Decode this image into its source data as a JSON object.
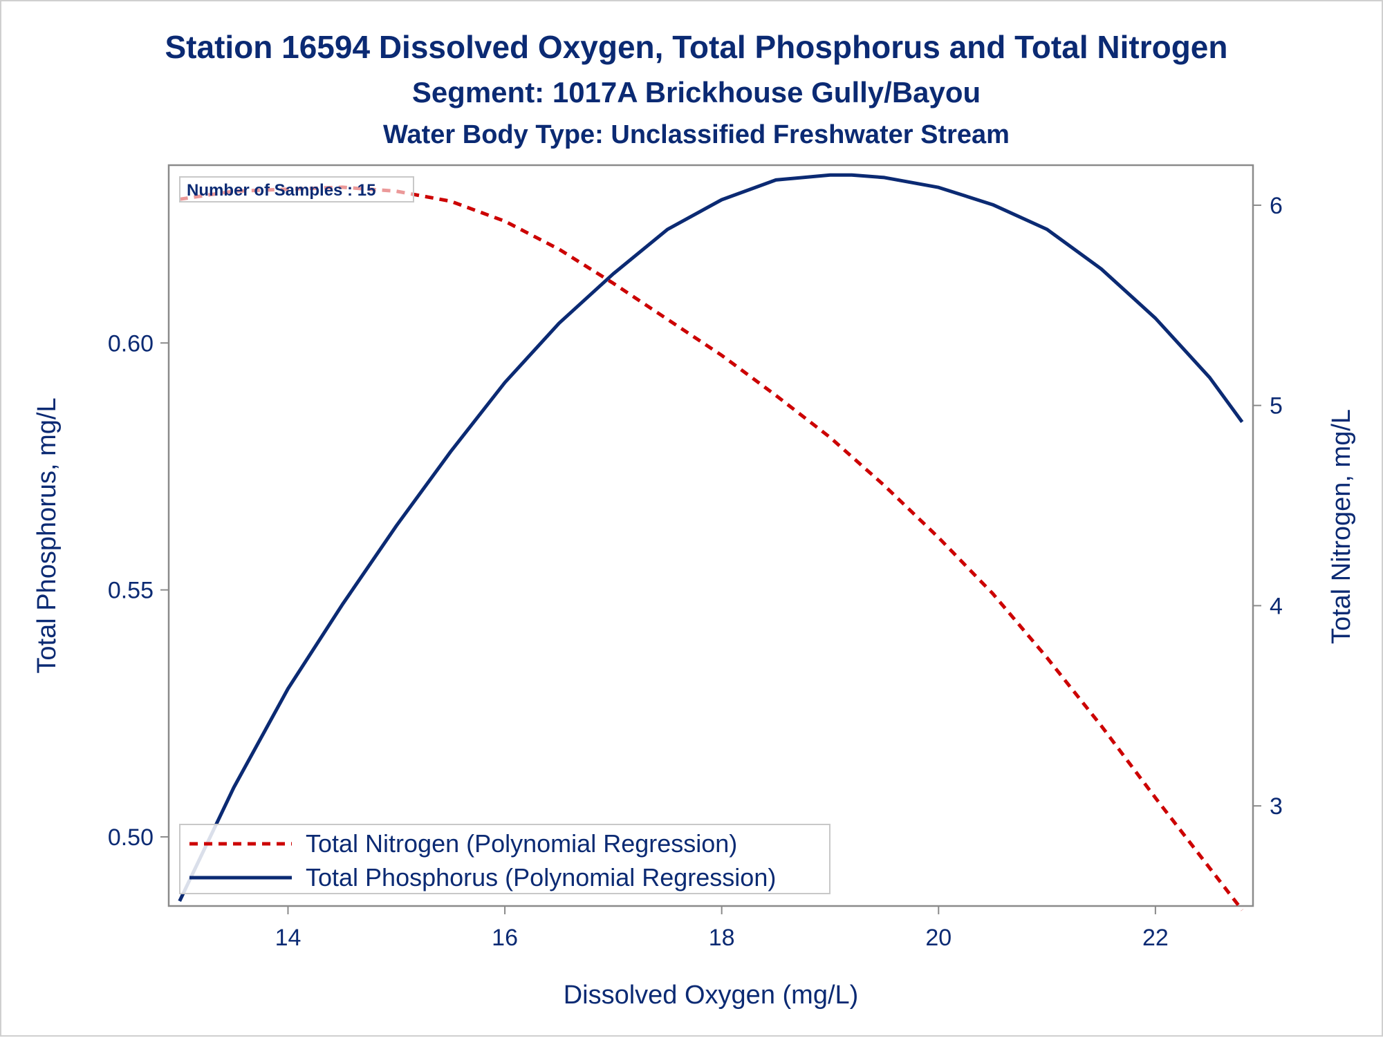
{
  "chart_data": {
    "type": "line",
    "title": "Station 16594  Dissolved Oxygen, Total Phosphorus and Total Nitrogen",
    "subtitle": "Segment: 1017A  Brickhouse Gully/Bayou",
    "subtitle2": "Water Body Type: Unclassified Freshwater Stream",
    "xlabel": "Dissolved Oxygen (mg/L)",
    "ylabel_left": "Total Phosphorus, mg/L",
    "ylabel_right": "Total Nitrogen, mg/L",
    "xlim": [
      12.9,
      22.9
    ],
    "ylim_left": [
      0.486,
      0.636
    ],
    "ylim_right": [
      2.5,
      6.2
    ],
    "x_ticks": [
      "14",
      "16",
      "18",
      "20",
      "22"
    ],
    "y_left_ticks": [
      "0.50",
      "0.55",
      "0.60"
    ],
    "y_right_ticks": [
      "3",
      "4",
      "5",
      "6"
    ],
    "grid": false,
    "legend_position": "bottom-left",
    "inset_label": "Number of Samples : 15",
    "series": [
      {
        "name": "Total Nitrogen (Polynomial Regression)",
        "axis": "right",
        "style": "dashed",
        "color": "#cc0000",
        "x": [
          13.0,
          13.5,
          14.0,
          14.5,
          15.0,
          15.5,
          16.0,
          16.5,
          17.0,
          17.5,
          18.0,
          18.5,
          19.0,
          19.5,
          20.0,
          20.5,
          21.0,
          21.5,
          22.0,
          22.5,
          22.8
        ],
        "y": [
          6.03,
          6.07,
          6.08,
          6.09,
          6.07,
          6.02,
          5.92,
          5.78,
          5.61,
          5.43,
          5.25,
          5.05,
          4.84,
          4.6,
          4.34,
          4.06,
          3.74,
          3.4,
          3.04,
          2.69,
          2.48
        ]
      },
      {
        "name": "Total Phosphorus (Polynomial Regression)",
        "axis": "left",
        "style": "solid",
        "color": "#0b2a73",
        "x": [
          13.0,
          13.5,
          14.0,
          14.5,
          15.0,
          15.5,
          16.0,
          16.5,
          17.0,
          17.5,
          18.0,
          18.5,
          19.0,
          19.2,
          19.5,
          20.0,
          20.5,
          21.0,
          21.5,
          22.0,
          22.5,
          22.8
        ],
        "y": [
          0.487,
          0.51,
          0.53,
          0.547,
          0.563,
          0.578,
          0.592,
          0.604,
          0.614,
          0.623,
          0.629,
          0.633,
          0.634,
          0.634,
          0.6335,
          0.6315,
          0.628,
          0.623,
          0.615,
          0.605,
          0.593,
          0.584
        ]
      }
    ]
  }
}
